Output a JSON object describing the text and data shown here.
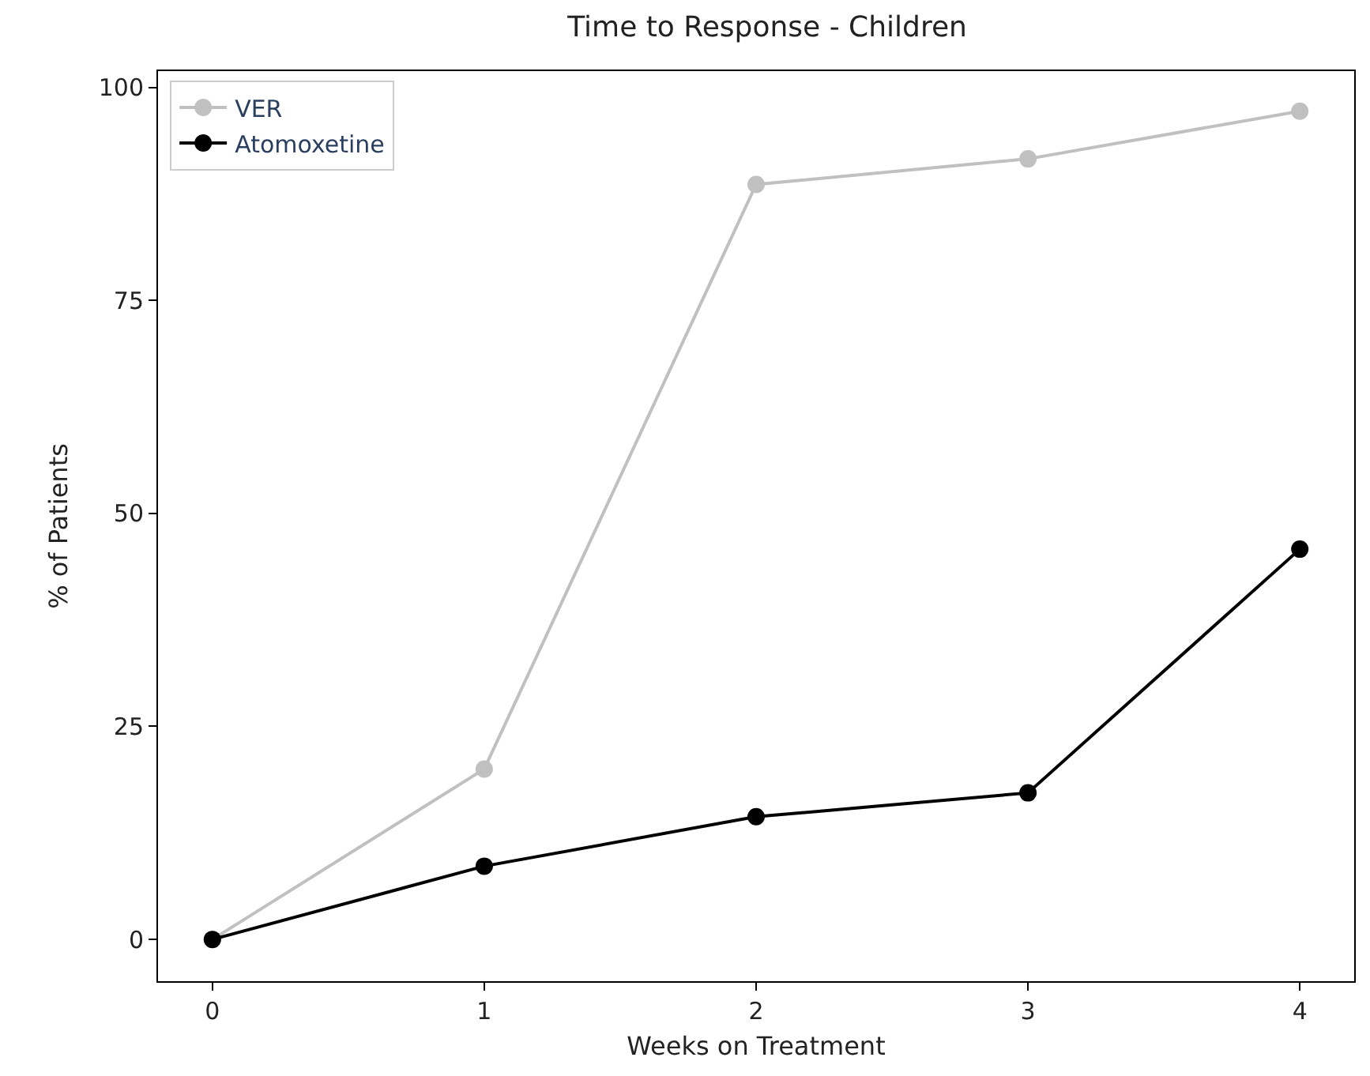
{
  "chart_data": {
    "type": "line",
    "title": "Time to Response - Children",
    "xlabel": "Weeks on Treatment",
    "ylabel": "% of Patients",
    "x": [
      0,
      1,
      2,
      3,
      4
    ],
    "series": [
      {
        "name": "VER",
        "color": "#c0c0c0",
        "values": [
          0,
          20,
          88.6,
          91.6,
          97.2
        ]
      },
      {
        "name": "Atomoxetine",
        "color": "#000000",
        "values": [
          0,
          8.6,
          14.4,
          17.2,
          45.8
        ]
      }
    ],
    "xlim": [
      -0.2,
      4.2
    ],
    "xticks": [
      0,
      1,
      2,
      3,
      4
    ],
    "ylim": [
      -4.9,
      101.9
    ],
    "yticks": [
      0,
      25,
      50,
      75,
      100
    ],
    "legend": "top left",
    "marker": "circle",
    "line_style": "solid"
  }
}
